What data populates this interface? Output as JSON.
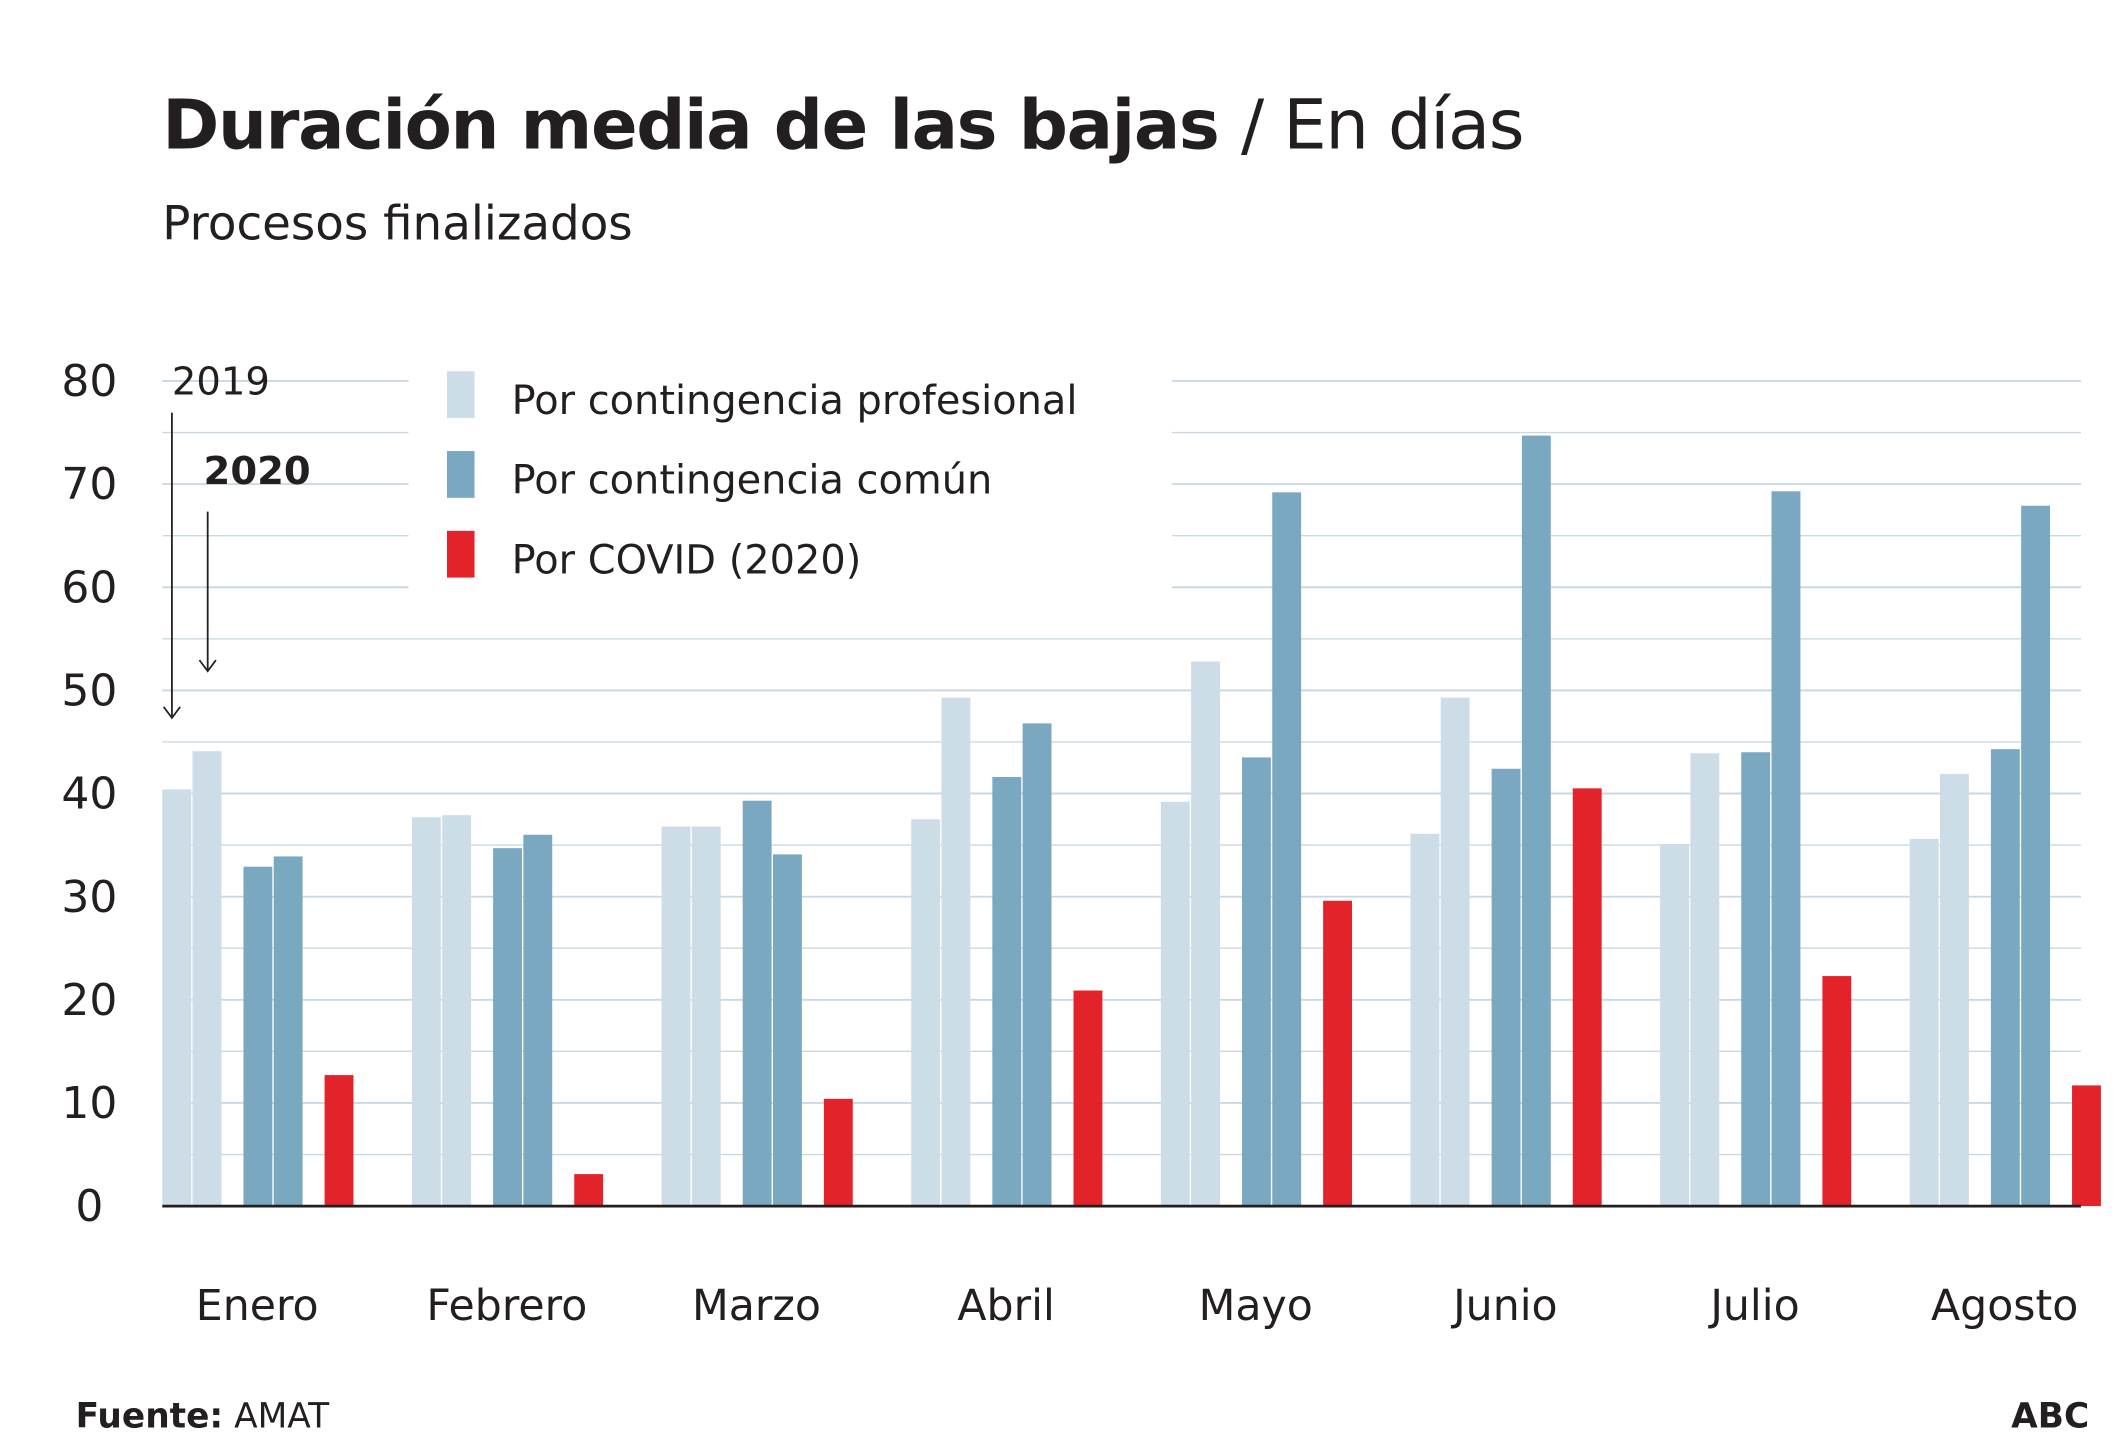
{
  "header": {
    "title": "Duración media de las bajas",
    "title_unit": "/ En días",
    "subtitle": "Procesos finalizados"
  },
  "annotations": {
    "year_2019": "2019",
    "year_2020": "2020"
  },
  "footer": {
    "source_label": "Fuente:",
    "source": "AMAT",
    "brand": "ABC"
  },
  "colors": {
    "profesional": "#cddde8",
    "comun": "#7aa8c1",
    "covid": "#e3232a",
    "grid": "#c9d9e3"
  },
  "chart_data": {
    "type": "bar",
    "title": "Duración media de las bajas / En días",
    "subtitle": "Procesos finalizados",
    "categories": [
      "Enero",
      "Febrero",
      "Marzo",
      "Abril",
      "Mayo",
      "Junio",
      "Julio",
      "Agosto"
    ],
    "ylim": [
      0,
      80
    ],
    "yticks": [
      "0",
      "10",
      "20",
      "30",
      "40",
      "50",
      "60",
      "70",
      "80"
    ],
    "grid": true,
    "legend_position": "top-left",
    "series": [
      {
        "name": "Por contingencia profesional",
        "year": "2019",
        "color": "#cddde8",
        "values": [
          40.4,
          37.7,
          36.8,
          37.5,
          39.2,
          36.1,
          35.1,
          35.6
        ]
      },
      {
        "name": "Por contingencia profesional",
        "year": "2020",
        "color": "#cddde8",
        "values": [
          44.1,
          37.9,
          36.8,
          49.3,
          52.8,
          49.3,
          43.9,
          41.9
        ]
      },
      {
        "name": "Por contingencia común",
        "year": "2019",
        "color": "#7aa8c1",
        "values": [
          32.9,
          34.7,
          39.3,
          41.6,
          43.5,
          42.4,
          44.0,
          44.3
        ]
      },
      {
        "name": "Por contingencia común",
        "year": "2020",
        "color": "#7aa8c1",
        "values": [
          33.9,
          36.0,
          34.1,
          46.8,
          69.2,
          74.7,
          69.3,
          67.9
        ]
      },
      {
        "name": "Por COVID (2020)",
        "year": "2020",
        "color": "#e3232a",
        "values": [
          12.7,
          3.1,
          10.4,
          20.9,
          29.6,
          40.5,
          22.3,
          11.7
        ]
      }
    ],
    "legend": [
      "Por contingencia profesional",
      "Por contingencia común",
      "Por COVID (2020)"
    ]
  }
}
